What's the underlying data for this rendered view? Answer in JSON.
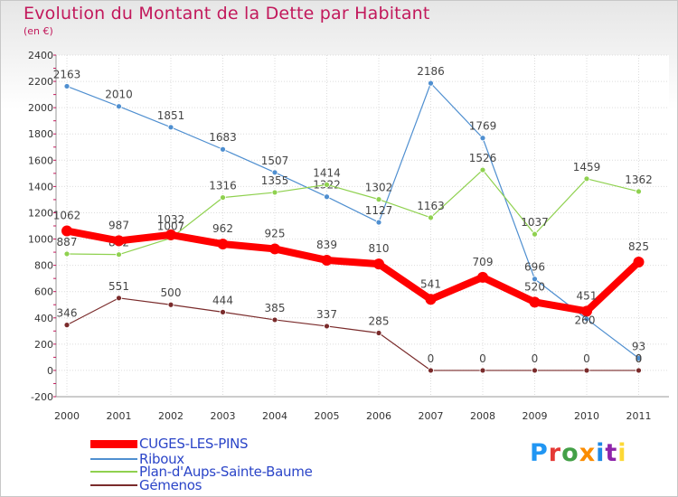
{
  "header": {
    "title": "Evolution du Montant de la Dette par Habitant",
    "subtitle": "(en €)"
  },
  "logo": {
    "text": "Proxiti",
    "colors": [
      "#2196f3",
      "#e53935",
      "#43a047",
      "#fb8c00",
      "#1e88e5",
      "#8e24aa",
      "#fdd835"
    ]
  },
  "chart_data": {
    "type": "line",
    "title": "Evolution du Montant de la Dette par Habitant",
    "ylabel": "(en €)",
    "xlabel": "",
    "x": [
      "2000",
      "2001",
      "2002",
      "2003",
      "2004",
      "2005",
      "2006",
      "2007",
      "2008",
      "2009",
      "2010",
      "2011"
    ],
    "ylim": [
      -200,
      2400
    ],
    "yticks": [
      -200,
      0,
      200,
      400,
      600,
      800,
      1000,
      1200,
      1400,
      1600,
      1800,
      2000,
      2200,
      2400
    ],
    "grid": true,
    "legend_position": "bottom-left",
    "series": [
      {
        "name": "Riboux",
        "color": "#4f8fd0",
        "values": [
          2163,
          2010,
          1851,
          1683,
          1507,
          1322,
          1127,
          2186,
          1769,
          696,
          392,
          93
        ],
        "labels": [
          "2163",
          "2010",
          "1851",
          "1683",
          "1507",
          "1322",
          "1127",
          "2186",
          "1769",
          "696",
          "",
          "93"
        ]
      },
      {
        "name": "Plan-d'Aups-Sainte-Baume",
        "color": "#8fd14f",
        "values": [
          887,
          882,
          1007,
          1316,
          1355,
          1414,
          1302,
          1163,
          1526,
          1037,
          1459,
          1362
        ],
        "labels": [
          "887",
          "882",
          "1007",
          "1316",
          "1355",
          "1414",
          "1302",
          "1163",
          "1526",
          "1037",
          "1459",
          "1362"
        ]
      },
      {
        "name": "Gémenos",
        "color": "#7a2b2b",
        "values": [
          346,
          551,
          500,
          444,
          385,
          337,
          285,
          0,
          0,
          0,
          0,
          0
        ],
        "labels": [
          "346",
          "551",
          "500",
          "444",
          "385",
          "337",
          "285",
          "0",
          "0",
          "0",
          "0",
          "0"
        ]
      },
      {
        "name": "CUGES-LES-PINS",
        "color": "#ff0000",
        "values": [
          1062,
          987,
          1032,
          962,
          925,
          839,
          810,
          541,
          709,
          520,
          451,
          825
        ],
        "labels": [
          "1062",
          "987",
          "1032",
          "962",
          "925",
          "839",
          "810",
          "541",
          "709",
          "520",
          "451",
          "825"
        ]
      }
    ],
    "extra_labels": [
      "260",
      "0"
    ]
  },
  "legend": {
    "items": [
      {
        "name": "CUGES-LES-PINS",
        "color": "#ff0000"
      },
      {
        "name": "Riboux",
        "color": "#4f8fd0"
      },
      {
        "name": "Plan-d'Aups-Sainte-Baume",
        "color": "#8fd14f"
      },
      {
        "name": "Gémenos",
        "color": "#7a2b2b"
      }
    ]
  }
}
